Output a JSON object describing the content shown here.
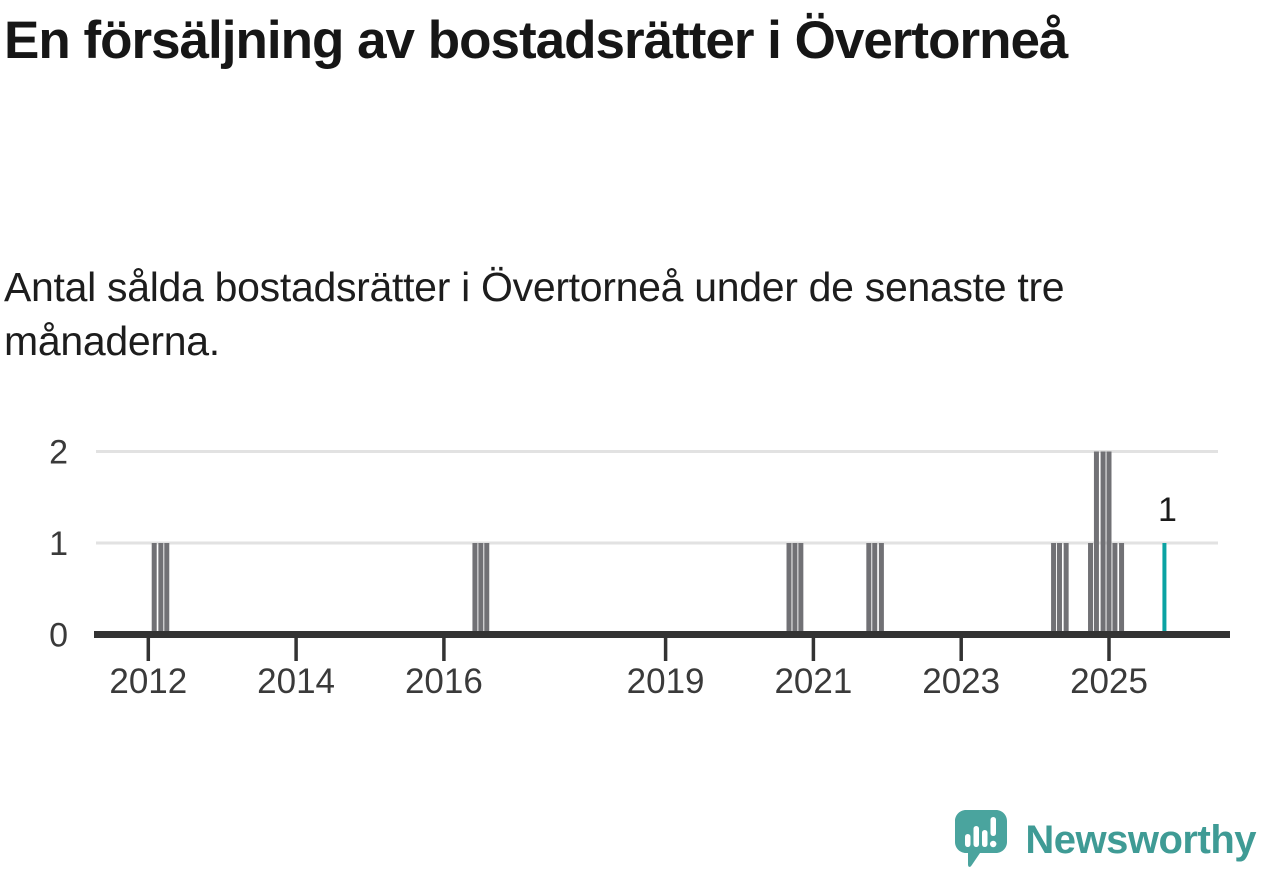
{
  "header": {
    "title": "En försäljning av bostadsrätter i Övertorneå",
    "subtitle": "Antal sålda bostadsrätter i Övertorneå under de senaste tre månaderna."
  },
  "chart_data": {
    "type": "bar",
    "title": "En försäljning av bostadsrätter i Övertorneå",
    "subtitle": "Antal sålda bostadsrätter i Övertorneå under de senaste tre månaderna.",
    "xlabel": "",
    "ylabel": "",
    "ylim": [
      0,
      2
    ],
    "yticks": [
      0,
      1,
      2
    ],
    "grid": "horizontal",
    "xticks": [
      {
        "year": 2012,
        "label": "2012"
      },
      {
        "year": 2014,
        "label": "2014"
      },
      {
        "year": 2016,
        "label": "2016"
      },
      {
        "year": 2019,
        "label": "2019"
      },
      {
        "year": 2021,
        "label": "2021"
      },
      {
        "year": 2023,
        "label": "2023"
      },
      {
        "year": 2025,
        "label": "2025"
      }
    ],
    "bars": [
      {
        "year": 2012.08,
        "value": 1
      },
      {
        "year": 2012.17,
        "value": 1
      },
      {
        "year": 2012.25,
        "value": 1
      },
      {
        "year": 2016.42,
        "value": 1
      },
      {
        "year": 2016.5,
        "value": 1
      },
      {
        "year": 2016.58,
        "value": 1
      },
      {
        "year": 2020.67,
        "value": 1
      },
      {
        "year": 2020.75,
        "value": 1
      },
      {
        "year": 2020.83,
        "value": 1
      },
      {
        "year": 2021.75,
        "value": 1
      },
      {
        "year": 2021.83,
        "value": 1
      },
      {
        "year": 2021.92,
        "value": 1
      },
      {
        "year": 2024.25,
        "value": 1
      },
      {
        "year": 2024.33,
        "value": 1
      },
      {
        "year": 2024.42,
        "value": 1
      },
      {
        "year": 2024.75,
        "value": 1
      },
      {
        "year": 2024.83,
        "value": 2
      },
      {
        "year": 2024.92,
        "value": 2
      },
      {
        "year": 2025.0,
        "value": 2
      },
      {
        "year": 2025.08,
        "value": 1
      },
      {
        "year": 2025.17,
        "value": 1
      },
      {
        "year": 2025.75,
        "value": 1,
        "highlight": true
      }
    ],
    "annotation": {
      "text": "1",
      "year": 2025.75,
      "value": 1
    },
    "legend": "none",
    "colors": {
      "bar": "#717175",
      "highlight": "#0ba3a3",
      "grid": "#e2e2e2",
      "axis": "#333333",
      "tick_label": "#3a3a3a",
      "annotation": "#1b1b1b"
    }
  },
  "footer": {
    "brand": "Newsworthy",
    "logo_icon": "newsworthy-speech-bubble-bar-chart-icon",
    "brand_color": "#3f9b95",
    "icon_color": "#4aa49e"
  }
}
